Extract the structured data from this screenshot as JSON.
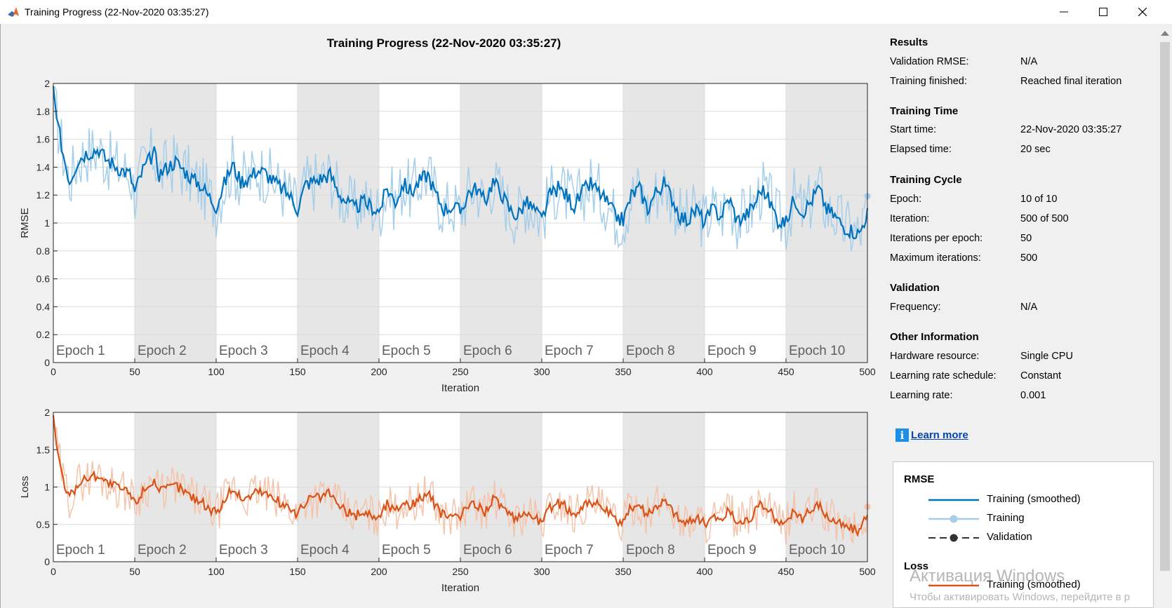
{
  "window": {
    "title": "Training Progress (22-Nov-2020 03:35:27)",
    "minimize_icon": "minimize-icon",
    "maximize_icon": "maximize-icon",
    "close_icon": "close-icon"
  },
  "plot_title": "Training Progress (22-Nov-2020 03:35:27)",
  "chart_data": [
    {
      "type": "line",
      "ylabel": "RMSE",
      "xlabel": "Iteration",
      "xlim": [
        0,
        500
      ],
      "ylim": [
        0,
        2
      ],
      "xticks": [
        0,
        50,
        100,
        150,
        200,
        250,
        300,
        350,
        400,
        450,
        500
      ],
      "yticks": [
        0,
        0.2,
        0.4,
        0.6,
        0.8,
        1,
        1.2,
        1.4,
        1.6,
        1.8,
        2
      ],
      "ytick_labels": [
        "0",
        "0.2",
        "0.4",
        "0.6",
        "0.8",
        "1",
        "1.2",
        "1.4",
        "1.6",
        "1.8",
        "2"
      ],
      "epochs": [
        "Epoch 1",
        "Epoch 2",
        "Epoch 3",
        "Epoch 4",
        "Epoch 5",
        "Epoch 6",
        "Epoch 7",
        "Epoch 8",
        "Epoch 9",
        "Epoch 10"
      ],
      "color": "#0072bd",
      "raw_color": "#a6cee9",
      "smoothed_x": [
        0,
        2,
        6,
        10,
        15,
        20,
        25,
        28,
        32,
        37,
        42,
        47,
        50,
        55,
        60,
        62,
        65,
        70,
        75,
        80,
        85,
        90,
        95,
        100,
        105,
        110,
        115,
        120,
        125,
        130,
        135,
        140,
        145,
        150,
        155,
        160,
        165,
        170,
        175,
        180,
        185,
        190,
        195,
        200,
        205,
        210,
        215,
        220,
        225,
        230,
        235,
        240,
        245,
        250,
        255,
        260,
        265,
        270,
        275,
        280,
        285,
        290,
        295,
        300,
        305,
        310,
        315,
        320,
        325,
        330,
        335,
        340,
        345,
        350,
        355,
        360,
        365,
        370,
        375,
        380,
        385,
        390,
        395,
        400,
        405,
        410,
        415,
        420,
        425,
        430,
        435,
        440,
        445,
        450,
        455,
        460,
        465,
        470,
        475,
        480,
        485,
        490,
        495,
        500
      ],
      "smoothed_y": [
        1.98,
        1.75,
        1.5,
        1.3,
        1.45,
        1.5,
        1.52,
        1.53,
        1.46,
        1.42,
        1.38,
        1.35,
        1.22,
        1.38,
        1.47,
        1.5,
        1.35,
        1.4,
        1.44,
        1.38,
        1.32,
        1.28,
        1.2,
        1.12,
        1.28,
        1.42,
        1.3,
        1.32,
        1.38,
        1.36,
        1.3,
        1.25,
        1.2,
        1.1,
        1.28,
        1.3,
        1.32,
        1.35,
        1.22,
        1.15,
        1.1,
        1.15,
        1.12,
        1.08,
        1.25,
        1.15,
        1.28,
        1.22,
        1.3,
        1.35,
        1.2,
        1.1,
        1.12,
        1.08,
        1.22,
        1.25,
        1.15,
        1.3,
        1.22,
        1.1,
        1.05,
        1.15,
        1.1,
        1.02,
        1.2,
        1.25,
        1.2,
        1.12,
        1.22,
        1.28,
        1.22,
        1.15,
        1.05,
        1.02,
        1.2,
        1.25,
        1.1,
        1.22,
        1.28,
        1.18,
        1.05,
        1.02,
        1.1,
        1.0,
        1.1,
        1.05,
        1.18,
        1.02,
        1.05,
        1.12,
        1.25,
        1.15,
        1.02,
        1.0,
        1.18,
        1.08,
        1.15,
        1.25,
        1.1,
        1.05,
        0.98,
        0.95,
        0.92,
        1.08
      ]
    },
    {
      "type": "line",
      "ylabel": "Loss",
      "xlabel": "Iteration",
      "xlim": [
        0,
        500
      ],
      "ylim": [
        0,
        2
      ],
      "xticks": [
        0,
        50,
        100,
        150,
        200,
        250,
        300,
        350,
        400,
        450,
        500
      ],
      "yticks": [
        0,
        0.5,
        1,
        1.5,
        2
      ],
      "ytick_labels": [
        "0",
        "0.5",
        "1",
        "1.5",
        "2"
      ],
      "epochs": [
        "Epoch 1",
        "Epoch 2",
        "Epoch 3",
        "Epoch 4",
        "Epoch 5",
        "Epoch 6",
        "Epoch 7",
        "Epoch 8",
        "Epoch 9",
        "Epoch 10"
      ],
      "color": "#d95319",
      "raw_color": "#f4c3aa",
      "smoothed_x": [
        0,
        2,
        6,
        10,
        15,
        20,
        25,
        28,
        32,
        37,
        42,
        47,
        50,
        55,
        60,
        62,
        65,
        70,
        75,
        80,
        85,
        90,
        95,
        100,
        105,
        110,
        115,
        120,
        125,
        130,
        135,
        140,
        145,
        150,
        155,
        160,
        165,
        170,
        175,
        180,
        185,
        190,
        195,
        200,
        205,
        210,
        215,
        220,
        225,
        230,
        235,
        240,
        245,
        250,
        255,
        260,
        265,
        270,
        275,
        280,
        285,
        290,
        295,
        300,
        305,
        310,
        315,
        320,
        325,
        330,
        335,
        340,
        345,
        350,
        355,
        360,
        365,
        370,
        375,
        380,
        385,
        390,
        395,
        400,
        405,
        410,
        415,
        420,
        425,
        430,
        435,
        440,
        445,
        450,
        455,
        460,
        465,
        470,
        475,
        480,
        485,
        490,
        495,
        500
      ],
      "smoothed_y": [
        1.96,
        1.55,
        1.1,
        0.85,
        1.05,
        1.12,
        1.15,
        1.17,
        1.07,
        1.02,
        0.97,
        0.92,
        0.78,
        0.95,
        1.06,
        1.1,
        0.92,
        0.98,
        1.03,
        0.95,
        0.87,
        0.82,
        0.73,
        0.64,
        0.82,
        1.0,
        0.85,
        0.87,
        0.95,
        0.92,
        0.85,
        0.78,
        0.73,
        0.62,
        0.82,
        0.85,
        0.87,
        0.92,
        0.75,
        0.67,
        0.61,
        0.67,
        0.63,
        0.59,
        0.78,
        0.67,
        0.82,
        0.75,
        0.85,
        0.92,
        0.73,
        0.61,
        0.63,
        0.59,
        0.75,
        0.78,
        0.67,
        0.85,
        0.75,
        0.61,
        0.55,
        0.67,
        0.61,
        0.52,
        0.73,
        0.78,
        0.73,
        0.63,
        0.75,
        0.82,
        0.75,
        0.67,
        0.55,
        0.52,
        0.73,
        0.78,
        0.61,
        0.75,
        0.82,
        0.7,
        0.55,
        0.52,
        0.61,
        0.5,
        0.61,
        0.55,
        0.7,
        0.52,
        0.55,
        0.63,
        0.78,
        0.67,
        0.52,
        0.5,
        0.7,
        0.59,
        0.67,
        0.78,
        0.61,
        0.55,
        0.48,
        0.45,
        0.42,
        0.6
      ]
    }
  ],
  "info": {
    "results": {
      "heading": "Results",
      "validation_rmse_label": "Validation RMSE:",
      "validation_rmse_value": "N/A",
      "training_finished_label": "Training finished:",
      "training_finished_value": "Reached final iteration"
    },
    "time": {
      "heading": "Training Time",
      "start_label": "Start time:",
      "start_value": "22-Nov-2020 03:35:27",
      "elapsed_label": "Elapsed time:",
      "elapsed_value": "20 sec"
    },
    "cycle": {
      "heading": "Training Cycle",
      "epoch_label": "Epoch:",
      "epoch_value": "10 of 10",
      "iteration_label": "Iteration:",
      "iteration_value": "500 of 500",
      "ipe_label": "Iterations per epoch:",
      "ipe_value": "50",
      "max_label": "Maximum iterations:",
      "max_value": "500"
    },
    "validation": {
      "heading": "Validation",
      "frequency_label": "Frequency:",
      "frequency_value": "N/A"
    },
    "other": {
      "heading": "Other Information",
      "hardware_label": "Hardware resource:",
      "hardware_value": "Single CPU",
      "schedule_label": "Learning rate schedule:",
      "schedule_value": "Constant",
      "lr_label": "Learning rate:",
      "lr_value": "0.001"
    },
    "learn_more": "Learn more",
    "learn_more_icon": "i"
  },
  "legend": {
    "rmse_heading": "RMSE",
    "training_smoothed": "Training (smoothed)",
    "training": "Training",
    "validation": "Validation",
    "loss_heading": "Loss",
    "loss_training_smoothed": "Training (smoothed)",
    "rmse_color": "#0072bd",
    "rmse_light_color": "#a6cee9",
    "loss_color": "#d95319"
  },
  "watermark": {
    "line1": "Активация Windows",
    "line2": "Чтобы активировать Windows, перейдите в р"
  }
}
